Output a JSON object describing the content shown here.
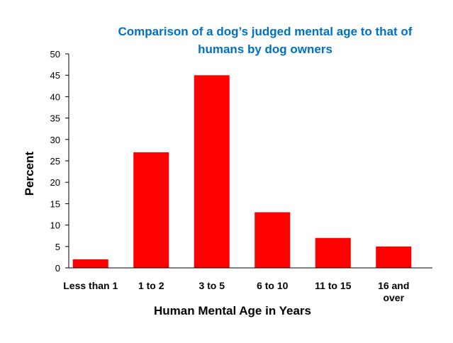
{
  "chart_data": {
    "type": "bar",
    "title_lines": [
      "Comparison of a dog’s judged mental age to that of",
      "humans by dog owners"
    ],
    "categories": [
      "Less than 1",
      "1 to  2",
      "3 to 5",
      "6 to 10",
      "11 to 15",
      "16 and over"
    ],
    "category_lines": [
      [
        "Less than 1"
      ],
      [
        "1 to  2"
      ],
      [
        "3 to 5"
      ],
      [
        "6 to 10"
      ],
      [
        "11 to 15"
      ],
      [
        "16 and",
        "over"
      ]
    ],
    "values": [
      2,
      27,
      45,
      13,
      7,
      5
    ],
    "xlabel": "Human Mental Age in Years",
    "ylabel": "Percent",
    "ylim": [
      0,
      50
    ],
    "yticks": [
      0,
      5,
      10,
      15,
      20,
      25,
      30,
      35,
      40,
      45,
      50
    ],
    "grid": false,
    "legend": "none",
    "colors": {
      "bar": "#ff0000",
      "title": "#0070c0",
      "axis": "#000000"
    }
  }
}
